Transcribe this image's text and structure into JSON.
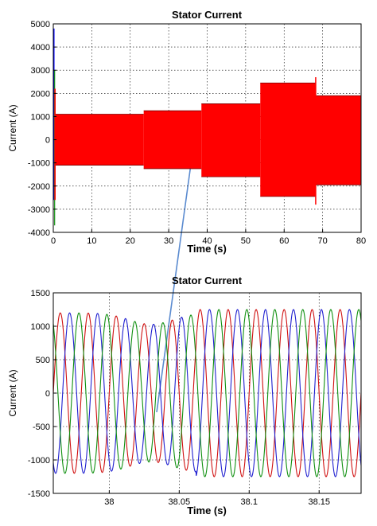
{
  "chart_data": [
    {
      "type": "line",
      "title": "Stator Current",
      "xlabel": "Time (s)",
      "ylabel": "Current (A)",
      "xlim": [
        0,
        80
      ],
      "ylim": [
        -4000,
        5000
      ],
      "xticks": [
        0,
        10,
        20,
        30,
        40,
        50,
        60,
        70,
        80
      ],
      "yticks": [
        5000,
        4000,
        3000,
        2000,
        1000,
        0,
        -1000,
        -2000,
        -3000,
        -4000
      ],
      "grid": "dotted",
      "colors": {
        "series": "#ff0000",
        "startup": "#0000ff",
        "axes": "#000000"
      },
      "envelope": {
        "description_free": true,
        "segments": [
          {
            "t0": 0.5,
            "t1": 23.5,
            "upper": 1100,
            "lower": -1100
          },
          {
            "t0": 23.5,
            "t1": 38.5,
            "upper": 1250,
            "lower": -1250
          },
          {
            "t0": 38.5,
            "t1": 53.8,
            "upper": 1550,
            "lower": -1600
          },
          {
            "t0": 53.8,
            "t1": 68.2,
            "upper": 2450,
            "lower": -2450
          },
          {
            "t0": 68.2,
            "t1": 80,
            "upper": 1900,
            "lower": -1950
          }
        ],
        "startup_peaks": [
          4800,
          -2600
        ],
        "transient_peaks": [
          {
            "t": 68.2,
            "upper": 2700,
            "lower": -2800
          }
        ]
      }
    },
    {
      "type": "line",
      "title": "Stator Current",
      "xlabel": "Time (s)",
      "ylabel": "Current (A)",
      "xlim": [
        37.96,
        38.18
      ],
      "ylim": [
        -1500,
        1500
      ],
      "xticks": [
        38,
        38.05,
        38.1,
        38.15
      ],
      "xticklabels": [
        "38",
        "38.05",
        "38.1",
        "38.15"
      ],
      "yticks": [
        1500,
        1000,
        500,
        0,
        -500,
        -1000,
        -1500
      ],
      "grid": "dotted",
      "frequency_hz": 50,
      "series": [
        {
          "color": "#d01010",
          "phase_deg": 0
        },
        {
          "color": "#2020d0",
          "phase_deg": -120
        },
        {
          "color": "#109010",
          "phase_deg": 120
        }
      ],
      "amplitude_profile": {
        "before": 1200,
        "after": 1250,
        "dip_center": 38.03,
        "dip_amplitude": 1030,
        "step_time": 38.062
      }
    }
  ]
}
